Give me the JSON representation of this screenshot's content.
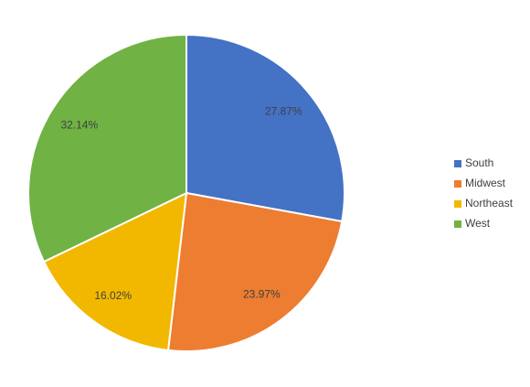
{
  "chart_data": {
    "type": "pie",
    "categories": [
      "South",
      "Midwest",
      "Northeast",
      "West"
    ],
    "values": [
      27.87,
      23.97,
      16.02,
      32.14
    ],
    "value_labels": [
      "27.87%",
      "23.97%",
      "16.02%",
      "32.14%"
    ],
    "colors": [
      "#4472c4",
      "#ed7d31",
      "#f2b800",
      "#70b244"
    ],
    "legend": "right"
  }
}
